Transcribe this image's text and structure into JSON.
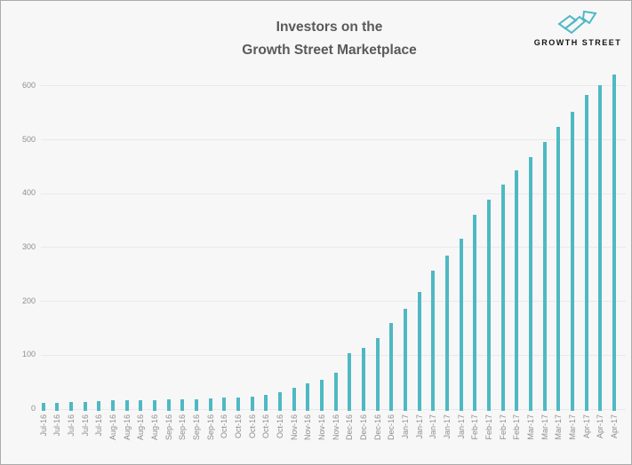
{
  "header": {
    "title_line1": "Investors on the",
    "title_line2": "Growth Street Marketplace"
  },
  "logo": {
    "icon": "growth-street-arrow-icon",
    "text": "GROWTH STREET"
  },
  "colors": {
    "background": "#f7f7f8",
    "frame_border": "#ababab",
    "bar": "#4eb9c2",
    "gridline": "#e9e9ea",
    "axis_label": "#8f8f8f",
    "title": "#595959",
    "logo_accent": "#4eb9c2",
    "logo_text": "#141414"
  },
  "chart_data": {
    "type": "bar",
    "title": "Investors on the Growth Street Marketplace",
    "xlabel": "",
    "ylabel": "",
    "ylim": [
      0,
      620
    ],
    "yticks": [
      0,
      100,
      200,
      300,
      400,
      500,
      600
    ],
    "grid": true,
    "legend": false,
    "categories": [
      "Jul-16",
      "Jul-16",
      "Jul-16",
      "Jul-16",
      "Jul-16",
      "Aug-16",
      "Aug-16",
      "Aug-16",
      "Aug-16",
      "Sep-16",
      "Sep-16",
      "Sep-16",
      "Sep-16",
      "Oct-16",
      "Oct-16",
      "Oct-16",
      "Oct-16",
      "Oct-16",
      "Nov-16",
      "Nov-16",
      "Nov-16",
      "Nov-16",
      "Dec-16",
      "Dec-16",
      "Dec-16",
      "Dec-16",
      "Jan-17",
      "Jan-17",
      "Jan-17",
      "Jan-17",
      "Jan-17",
      "Feb-17",
      "Feb-17",
      "Feb-17",
      "Feb-17",
      "Mar-17",
      "Mar-17",
      "Mar-17",
      "Mar-17",
      "Apr-17",
      "Apr-17",
      "Apr-17"
    ],
    "values": [
      10,
      11,
      12,
      12,
      14,
      15,
      15,
      16,
      16,
      17,
      18,
      18,
      19,
      20,
      21,
      22,
      25,
      31,
      38,
      47,
      53,
      66,
      103,
      113,
      131,
      159,
      186,
      217,
      257,
      285,
      315,
      360,
      388,
      417,
      443,
      468,
      495,
      523,
      552,
      582,
      600,
      620
    ]
  }
}
